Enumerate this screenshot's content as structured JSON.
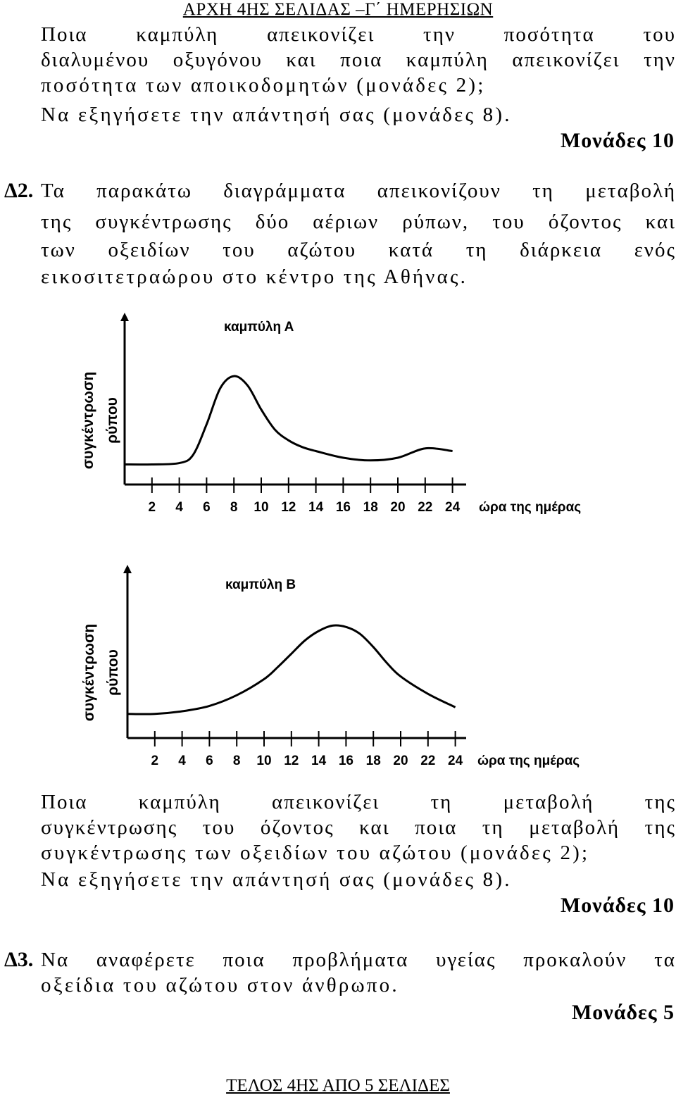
{
  "header": "ΑΡΧΗ 4ΗΣ ΣΕΛΙΔΑΣ –Γ΄ ΗΜΕΡΗΣΙΩΝ",
  "q1": {
    "lines": [
      "Ποια καμπύλη απεικονίζει την ποσότητα του",
      "διαλυμένου οξυγόνου και ποια καμπύλη απεικονίζει την",
      "ποσότητα των αποικοδομητών (μονάδες 2);",
      "Να εξηγήσετε την απάντησή σας (μονάδες 8)."
    ],
    "marks": "Μονάδες 10"
  },
  "d2": {
    "number": "Δ2.",
    "lines": [
      "Τα παρακάτω διαγράμματα απεικονίζουν τη μεταβολή",
      "της συγκέντρωσης δύο αέριων ρύπων, του όζοντος και",
      "των οξειδίων του αζώτου κατά τη διάρκεια ενός",
      "εικοσιτετραώρου στο κέντρο της Αθήνας."
    ],
    "question_lines": [
      "Ποια καμπύλη απεικονίζει τη μεταβολή της",
      "συγκέντρωσης του όζοντος και ποια τη μεταβολή της",
      "συγκέντρωσης των οξειδίων του αζώτου (μονάδες 2);",
      "Να εξηγήσετε την απάντησή σας (μονάδες 8)."
    ],
    "marks": "Μονάδες 10"
  },
  "d3": {
    "number": "Δ3.",
    "lines": [
      "Να αναφέρετε ποια προβλήματα υγείας προκαλούν τα",
      "οξείδια του αζώτου στον άνθρωπο."
    ],
    "marks": "Μονάδες 5"
  },
  "footer": "ΤΕΛΟΣ 4ΗΣ ΑΠΟ 5 ΣΕΛΙΔΕΣ",
  "chart_data": [
    {
      "type": "line",
      "title": "καμπύλη Α",
      "xlabel": "ώρα της ημέρας",
      "ylabel": [
        "συγκέντρωση",
        "ρύπου"
      ],
      "x_ticks": [
        "2",
        "4",
        "6",
        "8",
        "10",
        "12",
        "14",
        "16",
        "18",
        "20",
        "22",
        "24"
      ],
      "x": [
        0,
        2,
        4,
        5,
        6,
        7,
        8,
        9,
        10,
        11,
        12,
        13,
        14,
        16,
        18,
        20,
        22,
        24
      ],
      "y": [
        1.5,
        1.5,
        1.6,
        2.2,
        4.5,
        7.2,
        8.1,
        7.4,
        5.6,
        4.1,
        3.3,
        2.8,
        2.5,
        2.0,
        1.8,
        2.0,
        2.7,
        2.5
      ],
      "ylim": [
        0,
        12
      ],
      "xlim": [
        0,
        24
      ]
    },
    {
      "type": "line",
      "title": "καμπύλη Β",
      "xlabel": "ώρα της ημέρας",
      "ylabel": [
        "συγκέντρωση",
        "ρύπου"
      ],
      "x_ticks": [
        "2",
        "4",
        "6",
        "8",
        "10",
        "12",
        "14",
        "16",
        "18",
        "20",
        "22",
        "24"
      ],
      "x": [
        0,
        2,
        4,
        6,
        8,
        10,
        11,
        12,
        13,
        14,
        15,
        16,
        17,
        18,
        19,
        20,
        22,
        24
      ],
      "y": [
        1.8,
        1.8,
        2.0,
        2.4,
        3.2,
        4.4,
        5.3,
        6.3,
        7.3,
        8.0,
        8.4,
        8.3,
        7.8,
        6.8,
        5.6,
        4.6,
        3.3,
        2.3
      ],
      "ylim": [
        0,
        12
      ],
      "xlim": [
        0,
        24
      ]
    }
  ]
}
